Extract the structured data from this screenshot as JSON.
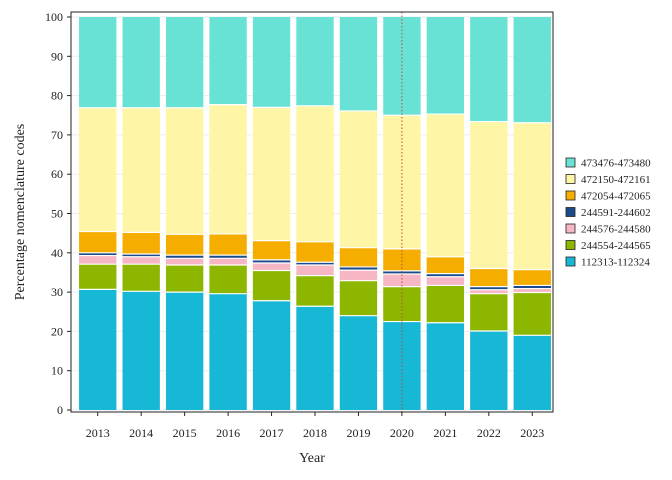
{
  "chart_data": {
    "type": "bar",
    "stacked": true,
    "title": "",
    "xlabel": "Year",
    "ylabel": "Percentage nomenclature codes",
    "ylim": [
      0,
      100
    ],
    "yticks": [
      0,
      10,
      20,
      30,
      40,
      50,
      60,
      70,
      80,
      90,
      100
    ],
    "categories": [
      "2013",
      "2014",
      "2015",
      "2016",
      "2017",
      "2018",
      "2019",
      "2020",
      "2021",
      "2022",
      "2023"
    ],
    "reference_line": {
      "x": "2020",
      "style": "dotted",
      "color": "#b5503a"
    },
    "legend_position": "right",
    "series": [
      {
        "name": "112313-112324",
        "color": "#17b7d6",
        "values": [
          30.7,
          30.2,
          30.0,
          29.6,
          27.8,
          26.4,
          24.0,
          22.5,
          22.2,
          20.1,
          19.0
        ]
      },
      {
        "name": "244554-244565",
        "color": "#8db600",
        "values": [
          6.4,
          6.9,
          6.9,
          7.3,
          7.7,
          7.8,
          8.9,
          8.9,
          9.5,
          9.5,
          10.9
        ]
      },
      {
        "name": "244576-244580",
        "color": "#f7b6c3",
        "values": [
          2.2,
          1.9,
          1.7,
          1.7,
          1.9,
          2.7,
          2.7,
          3.2,
          2.2,
          1.0,
          1.0
        ]
      },
      {
        "name": "244591-244602",
        "color": "#1a4b8c",
        "values": [
          0.7,
          0.7,
          0.8,
          0.8,
          0.8,
          0.7,
          0.8,
          0.8,
          0.8,
          0.8,
          0.8
        ]
      },
      {
        "name": "472054-472065",
        "color": "#f5ae00",
        "values": [
          5.4,
          5.5,
          5.3,
          5.4,
          4.9,
          5.2,
          4.9,
          5.6,
          4.3,
          4.6,
          4.0
        ]
      },
      {
        "name": "472150-472161",
        "color": "#fff5a6",
        "values": [
          31.5,
          31.7,
          32.2,
          32.9,
          33.9,
          34.6,
          34.8,
          34.0,
          36.3,
          37.4,
          37.4
        ]
      },
      {
        "name": "473476-473480",
        "color": "#69e2d6",
        "values": [
          23.1,
          23.1,
          23.1,
          22.3,
          23.0,
          22.6,
          23.9,
          25.0,
          24.7,
          26.6,
          26.9
        ]
      }
    ]
  }
}
